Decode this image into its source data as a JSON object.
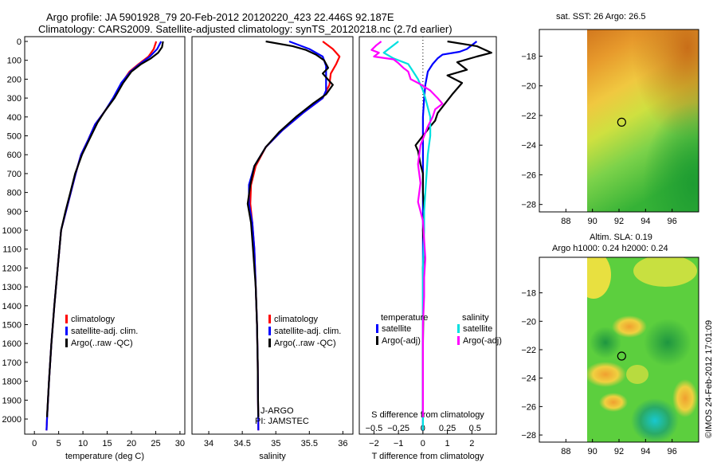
{
  "header": {
    "line1": "Argo profile: JA 5901928_79 20-Feb-2012 20120220_423 22.446S 92.187E",
    "line2": "Climatology: CARS2009. Satellite-adjusted climatology: synTS_20120218.nc (2.7d earlier)"
  },
  "footer": {
    "stamp": "©IMOS 24-Feb-2012 17:01:09"
  },
  "colors": {
    "climatology": "#ff0000",
    "satellite": "#0000ff",
    "argo": "#000000",
    "sal_satellite": "#00e0e0",
    "sal_argo": "#ff00ff"
  },
  "chart_data": [
    {
      "type": "line",
      "id": "temperature",
      "xlabel": "temperature (deg C)",
      "ylabel": "",
      "xlim": [
        -2,
        31
      ],
      "ylim": [
        2080,
        0
      ],
      "xticks": [
        0,
        5,
        10,
        15,
        20,
        25,
        30
      ],
      "yticks": [
        0,
        100,
        200,
        300,
        400,
        500,
        600,
        700,
        800,
        900,
        1000,
        1100,
        1200,
        1300,
        1400,
        1500,
        1600,
        1700,
        1800,
        1900,
        2000
      ],
      "legend": [
        "climatology",
        "satellite-adj. clim.",
        "Argo(..raw -QC)"
      ],
      "series": [
        {
          "name": "climatology",
          "color": "#ff0000",
          "points": [
            [
              25.1,
              0
            ],
            [
              24.6,
              40
            ],
            [
              23.5,
              80
            ],
            [
              21.5,
              120
            ],
            [
              19.6,
              160
            ],
            [
              18.0,
              220
            ],
            [
              16.3,
              300
            ],
            [
              14.5,
              370
            ],
            [
              12.5,
              440
            ],
            [
              11.1,
              520
            ],
            [
              9.6,
              600
            ],
            [
              8.5,
              700
            ],
            [
              7.5,
              800
            ],
            [
              6.5,
              900
            ],
            [
              5.5,
              1000
            ],
            [
              4.8,
              1200
            ],
            [
              4.1,
              1400
            ],
            [
              3.5,
              1600
            ],
            [
              3.0,
              1800
            ],
            [
              2.6,
              2000
            ],
            [
              2.5,
              2060
            ]
          ]
        },
        {
          "name": "satellite-adj. clim.",
          "color": "#0000ff",
          "points": [
            [
              26.1,
              0
            ],
            [
              25.3,
              40
            ],
            [
              23.8,
              80
            ],
            [
              21.7,
              120
            ],
            [
              19.8,
              160
            ],
            [
              17.9,
              220
            ],
            [
              16.2,
              300
            ],
            [
              14.5,
              370
            ],
            [
              12.5,
              440
            ],
            [
              11.1,
              520
            ],
            [
              9.6,
              600
            ],
            [
              8.5,
              700
            ],
            [
              7.5,
              800
            ],
            [
              6.5,
              900
            ],
            [
              5.5,
              1000
            ],
            [
              4.8,
              1200
            ],
            [
              4.1,
              1400
            ],
            [
              3.5,
              1600
            ],
            [
              3.0,
              1800
            ],
            [
              2.6,
              2000
            ],
            [
              2.5,
              2060
            ]
          ]
        },
        {
          "name": "Argo(..raw -QC)",
          "color": "#000000",
          "points": [
            [
              26.5,
              0
            ],
            [
              26.3,
              30
            ],
            [
              25.5,
              60
            ],
            [
              24.0,
              90
            ],
            [
              22.0,
              120
            ],
            [
              20.0,
              160
            ],
            [
              18.3,
              220
            ],
            [
              16.5,
              300
            ],
            [
              14.5,
              370
            ],
            [
              13.0,
              430
            ],
            [
              11.3,
              520
            ],
            [
              9.8,
              600
            ],
            [
              8.4,
              700
            ],
            [
              7.4,
              800
            ],
            [
              6.4,
              900
            ],
            [
              5.5,
              1000
            ],
            [
              4.8,
              1200
            ],
            [
              4.1,
              1400
            ],
            [
              3.5,
              1600
            ],
            [
              3.0,
              1800
            ],
            [
              2.6,
              1990
            ]
          ]
        }
      ]
    },
    {
      "type": "line",
      "id": "salinity",
      "xlabel": "salinity",
      "ylabel": "",
      "xlim": [
        33.75,
        36.15
      ],
      "ylim": [
        2080,
        0
      ],
      "xticks": [
        34,
        34.5,
        35,
        35.5,
        36
      ],
      "xticklabels": [
        "34",
        "34.5",
        "35",
        "35.5",
        "36"
      ],
      "legend": [
        "climatology",
        "satellite-adj. clim.",
        "Argo(..raw -QC)"
      ],
      "annotation": [
        "J-ARGO",
        "PI: JAMSTEC"
      ],
      "series": [
        {
          "name": "climatology",
          "color": "#ff0000",
          "points": [
            [
              35.7,
              0
            ],
            [
              35.85,
              40
            ],
            [
              35.95,
              80
            ],
            [
              35.9,
              120
            ],
            [
              35.82,
              170
            ],
            [
              35.8,
              230
            ],
            [
              35.7,
              300
            ],
            [
              35.4,
              380
            ],
            [
              35.1,
              470
            ],
            [
              34.85,
              560
            ],
            [
              34.7,
              660
            ],
            [
              34.63,
              760
            ],
            [
              34.62,
              860
            ],
            [
              34.65,
              960
            ],
            [
              34.68,
              1100
            ],
            [
              34.7,
              1300
            ],
            [
              34.72,
              1500
            ],
            [
              34.73,
              1700
            ],
            [
              34.735,
              1900
            ],
            [
              34.74,
              2060
            ]
          ]
        },
        {
          "name": "satellite-adj. clim.",
          "color": "#0000ff",
          "points": [
            [
              35.2,
              0
            ],
            [
              35.5,
              40
            ],
            [
              35.7,
              80
            ],
            [
              35.75,
              130
            ],
            [
              35.75,
              200
            ],
            [
              35.75,
              260
            ],
            [
              35.7,
              300
            ],
            [
              35.4,
              380
            ],
            [
              35.1,
              470
            ],
            [
              34.85,
              560
            ],
            [
              34.68,
              660
            ],
            [
              34.6,
              760
            ],
            [
              34.6,
              860
            ],
            [
              34.65,
              960
            ],
            [
              34.68,
              1100
            ],
            [
              34.7,
              1300
            ],
            [
              34.72,
              1500
            ],
            [
              34.73,
              1700
            ],
            [
              34.735,
              1900
            ],
            [
              34.74,
              2060
            ]
          ]
        },
        {
          "name": "Argo(..raw -QC)",
          "color": "#000000",
          "points": [
            [
              34.85,
              0
            ],
            [
              35.25,
              25
            ],
            [
              35.45,
              45
            ],
            [
              35.6,
              70
            ],
            [
              35.72,
              100
            ],
            [
              35.78,
              140
            ],
            [
              35.7,
              170
            ],
            [
              35.8,
              210
            ],
            [
              35.85,
              230
            ],
            [
              35.75,
              280
            ],
            [
              35.55,
              330
            ],
            [
              35.3,
              400
            ],
            [
              35.05,
              480
            ],
            [
              34.85,
              560
            ],
            [
              34.68,
              660
            ],
            [
              34.62,
              760
            ],
            [
              34.58,
              860
            ],
            [
              34.63,
              960
            ],
            [
              34.66,
              1100
            ],
            [
              34.7,
              1300
            ],
            [
              34.72,
              1500
            ],
            [
              34.73,
              1700
            ],
            [
              34.735,
              1900
            ],
            [
              34.74,
              1990
            ]
          ]
        }
      ]
    },
    {
      "type": "line",
      "id": "differences",
      "xlabel": "T difference from climatology",
      "xlabel_top": "S difference from climatology",
      "ylabel": "",
      "xlim": [
        -2.6,
        3.0
      ],
      "ylim": [
        2080,
        0
      ],
      "xticks": [
        -2,
        -1,
        0,
        1,
        2
      ],
      "s_ticks": [
        -0.5,
        -0.25,
        0,
        0.25,
        0.5
      ],
      "s_ticklabels": [
        "−0.5",
        "−0.25",
        "0",
        "0.25",
        "0.5"
      ],
      "legend_headers": [
        "temperature",
        "salinity"
      ],
      "legend": [
        "satellite",
        "Argo(-adj)",
        "satellite",
        "Argo(-adj)"
      ],
      "series": [
        {
          "name": "temperature satellite",
          "color": "#0000ff",
          "points": [
            [
              2.2,
              0
            ],
            [
              1.8,
              40
            ],
            [
              1.5,
              55
            ],
            [
              0.8,
              70
            ],
            [
              0.6,
              90
            ],
            [
              0.4,
              120
            ],
            [
              0.2,
              160
            ],
            [
              0.1,
              230
            ],
            [
              0.05,
              300
            ],
            [
              0,
              400
            ],
            [
              0,
              500
            ],
            [
              0,
              700
            ],
            [
              0,
              900
            ],
            [
              0,
              1200
            ],
            [
              0,
              1500
            ],
            [
              0,
              1800
            ],
            [
              0,
              2060
            ]
          ]
        },
        {
          "name": "temperature Argo(-adj)",
          "color": "#000000",
          "points": [
            [
              1.0,
              0
            ],
            [
              2.2,
              25
            ],
            [
              2.8,
              60
            ],
            [
              2.2,
              80
            ],
            [
              1.4,
              110
            ],
            [
              1.8,
              150
            ],
            [
              1.0,
              180
            ],
            [
              1.6,
              220
            ],
            [
              1.2,
              280
            ],
            [
              0.9,
              330
            ],
            [
              0.6,
              380
            ],
            [
              0.5,
              420
            ],
            [
              0.3,
              450
            ],
            [
              -0.3,
              550
            ],
            [
              -0.2,
              580
            ],
            [
              -0.1,
              650
            ],
            [
              0,
              700
            ],
            [
              0,
              800
            ],
            [
              0.05,
              900
            ],
            [
              0,
              1000
            ],
            [
              0.05,
              1100
            ],
            [
              0,
              1200
            ],
            [
              0.02,
              1400
            ],
            [
              0,
              1600
            ],
            [
              0,
              1800
            ],
            [
              0,
              1990
            ]
          ]
        },
        {
          "name": "salinity satellite",
          "color": "#00e0e0",
          "points": [
            [
              -1.0,
              0
            ],
            [
              -1.3,
              30
            ],
            [
              -1.6,
              60
            ],
            [
              -1.2,
              90
            ],
            [
              -0.6,
              120
            ],
            [
              -0.4,
              160
            ],
            [
              -0.2,
              200
            ],
            [
              0,
              260
            ],
            [
              0.1,
              300
            ],
            [
              0.2,
              350
            ],
            [
              0.3,
              400
            ],
            [
              0.3,
              500
            ],
            [
              0.25,
              550
            ],
            [
              0.2,
              600
            ],
            [
              0.15,
              700
            ],
            [
              0.1,
              800
            ],
            [
              0.05,
              900
            ],
            [
              0.05,
              1000
            ],
            [
              0,
              1200
            ],
            [
              0,
              1400
            ],
            [
              0,
              1600
            ],
            [
              0,
              1800
            ],
            [
              0,
              2060
            ]
          ]
        },
        {
          "name": "salinity Argo(-adj)",
          "color": "#ff00ff",
          "points": [
            [
              -1.7,
              0
            ],
            [
              -1.9,
              20
            ],
            [
              -2.1,
              45
            ],
            [
              -1.8,
              60
            ],
            [
              -2.0,
              80
            ],
            [
              -1.2,
              95
            ],
            [
              -1.0,
              115
            ],
            [
              -0.8,
              140
            ],
            [
              -0.6,
              160
            ],
            [
              -0.5,
              200
            ],
            [
              -0.2,
              220
            ],
            [
              0.3,
              260
            ],
            [
              0.6,
              300
            ],
            [
              0.8,
              330
            ],
            [
              0.5,
              360
            ],
            [
              0.4,
              400
            ],
            [
              0.2,
              450
            ],
            [
              -0.1,
              550
            ],
            [
              -0.2,
              650
            ],
            [
              -0.1,
              750
            ],
            [
              -0.2,
              850
            ],
            [
              0,
              950
            ],
            [
              0.05,
              1050
            ],
            [
              0.1,
              1150
            ],
            [
              0.05,
              1250
            ],
            [
              0.05,
              1350
            ],
            [
              0,
              1500
            ],
            [
              0,
              1700
            ],
            [
              0,
              1990
            ]
          ]
        }
      ]
    },
    {
      "type": "heatmap",
      "id": "sst-map",
      "title": "sat. SST: 26 Argo: 26.5",
      "xlim": [
        86,
        98
      ],
      "ylim": [
        -28.5,
        -16.2
      ],
      "xticks": [
        88,
        90,
        92,
        94,
        96
      ],
      "yticks": [
        -18,
        -20,
        -22,
        -24,
        -26,
        -28
      ],
      "data_extent": {
        "lon": [
          90,
          98
        ]
      },
      "field": "smooth gradient: orange/brown in north, yellow centre, green in south-east",
      "marker": [
        92.2,
        -22.45
      ]
    },
    {
      "type": "heatmap",
      "id": "sla-map",
      "title": "Altim. SLA: 0.19",
      "subtitle": "Argo h1000: 0.24 h2000: 0.24",
      "xlim": [
        86,
        98
      ],
      "ylim": [
        -28.5,
        -15.5
      ],
      "xticks": [
        88,
        90,
        92,
        94,
        96
      ],
      "yticks": [
        -18,
        -20,
        -22,
        -24,
        -26,
        -28
      ],
      "data_extent": {
        "lon": [
          90,
          98
        ]
      },
      "field": "patchy green/yellow with orange spots, blue-green eddy in south-east",
      "marker": [
        92.2,
        -22.45
      ]
    }
  ]
}
